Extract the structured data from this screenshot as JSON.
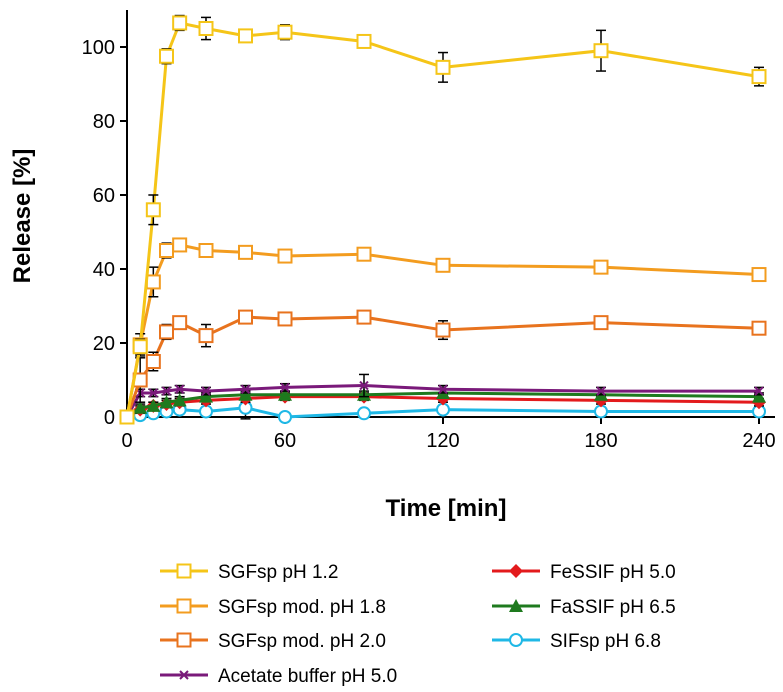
{
  "chart_data": {
    "type": "line",
    "title": "",
    "xlabel": "Time [min]",
    "ylabel": "Release [%]",
    "xlim": [
      0,
      245
    ],
    "ylim": [
      0,
      110
    ],
    "xticks": [
      0,
      60,
      120,
      180,
      240
    ],
    "yticks": [
      0,
      20,
      40,
      60,
      80,
      100
    ],
    "grid": false,
    "legend_position": "bottom",
    "series": [
      {
        "name": "SGFsp pH 1.2",
        "color": "#F5C518",
        "marker": "square-open",
        "x": [
          0,
          5,
          10,
          15,
          20,
          30,
          45,
          60,
          90,
          120,
          180,
          240
        ],
        "y": [
          0,
          19,
          56,
          97.5,
          106.5,
          105,
          103,
          104,
          101.5,
          94.5,
          99,
          92
        ],
        "err": [
          0,
          2,
          4,
          2,
          2,
          3,
          1.5,
          2,
          1.5,
          4,
          5.5,
          2.5
        ]
      },
      {
        "name": "SGFsp mod. pH 1.8",
        "color": "#F39C1F",
        "marker": "square-open",
        "x": [
          0,
          5,
          10,
          15,
          20,
          30,
          45,
          60,
          90,
          120,
          180,
          240
        ],
        "y": [
          0,
          19.5,
          36.5,
          45,
          46.5,
          45,
          44.5,
          43.5,
          44,
          41,
          40.5,
          38.5
        ],
        "err": [
          0,
          3,
          4,
          2,
          1.5,
          1,
          1,
          1,
          1,
          1.5,
          1.5,
          1.5
        ]
      },
      {
        "name": "SGFsp mod. pH 2.0",
        "color": "#E8731E",
        "marker": "square-open",
        "x": [
          0,
          5,
          10,
          15,
          20,
          30,
          45,
          60,
          90,
          120,
          180,
          240
        ],
        "y": [
          0,
          10,
          15,
          23,
          25.5,
          22,
          27,
          26.5,
          27,
          23.5,
          25.5,
          24
        ],
        "err": [
          0,
          6,
          2.5,
          2,
          1.5,
          3,
          1.5,
          1.5,
          1,
          2.5,
          1.5,
          1.5
        ]
      },
      {
        "name": "Acetate buffer pH 5.0",
        "color": "#7A1A7A",
        "marker": "x",
        "x": [
          0,
          5,
          10,
          15,
          20,
          30,
          45,
          60,
          90,
          120,
          180,
          240
        ],
        "y": [
          0,
          6.5,
          6.5,
          7,
          7.5,
          7,
          7.5,
          8,
          8.5,
          7.5,
          7,
          7
        ],
        "err": [
          0,
          1,
          1,
          1,
          1,
          1,
          1,
          1,
          3,
          1,
          1,
          1
        ]
      },
      {
        "name": "FeSSIF pH 5.0",
        "color": "#E31A1C",
        "marker": "diamond-filled",
        "x": [
          0,
          5,
          10,
          15,
          20,
          30,
          45,
          60,
          90,
          120,
          180,
          240
        ],
        "y": [
          0,
          2,
          3,
          3.5,
          4,
          4.5,
          5,
          5.5,
          5.5,
          5,
          4.5,
          4
        ],
        "err": [
          0,
          1,
          1,
          1,
          1,
          1,
          1,
          1,
          1,
          1,
          1,
          1
        ]
      },
      {
        "name": "FaSSIF pH 6.5",
        "color": "#1E7A1E",
        "marker": "triangle-filled",
        "x": [
          0,
          5,
          10,
          15,
          20,
          30,
          45,
          60,
          90,
          120,
          180,
          240
        ],
        "y": [
          0,
          2.5,
          3,
          4,
          4.5,
          5.5,
          6,
          6,
          6,
          6.5,
          6,
          5.5
        ],
        "err": [
          0,
          1,
          1,
          1,
          1,
          1,
          1,
          1,
          1,
          1,
          1,
          1
        ]
      },
      {
        "name": "SIFsp pH 6.8",
        "color": "#1FB8E6",
        "marker": "circle-open",
        "x": [
          0,
          5,
          10,
          15,
          20,
          30,
          45,
          60,
          90,
          120,
          180,
          240
        ],
        "y": [
          0,
          0.5,
          1,
          1.5,
          2,
          1.5,
          2.5,
          0,
          1,
          2,
          1.5,
          1.5
        ],
        "err": [
          0,
          1,
          1,
          1,
          1,
          1,
          3,
          1,
          1,
          1,
          1,
          1
        ]
      }
    ]
  }
}
